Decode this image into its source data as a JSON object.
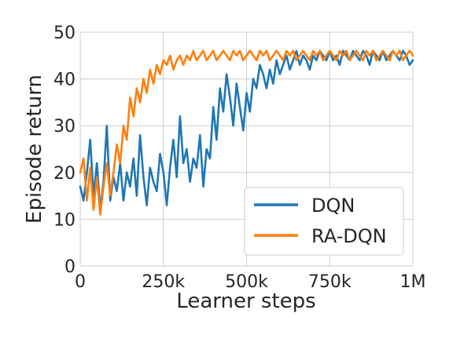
{
  "chart_data": {
    "type": "line",
    "xlabel": "Learner steps",
    "ylabel": "Episode return",
    "xlim": [
      0,
      1000000
    ],
    "ylim": [
      0,
      50
    ],
    "grid": true,
    "legend_position": "lower-right",
    "x_ticks": [
      {
        "value": 0,
        "label": "0"
      },
      {
        "value": 250000,
        "label": "250k"
      },
      {
        "value": 500000,
        "label": "500k"
      },
      {
        "value": 750000,
        "label": "750k"
      },
      {
        "value": 1000000,
        "label": "1M"
      }
    ],
    "y_ticks": [
      {
        "value": 0,
        "label": "0"
      },
      {
        "value": 10,
        "label": "10"
      },
      {
        "value": 20,
        "label": "20"
      },
      {
        "value": 30,
        "label": "30"
      },
      {
        "value": 40,
        "label": "40"
      },
      {
        "value": 50,
        "label": "50"
      }
    ],
    "series": [
      {
        "name": "DQN",
        "color": "#1f77b4",
        "points": [
          [
            0,
            17
          ],
          [
            10000,
            14
          ],
          [
            20000,
            20
          ],
          [
            30000,
            27
          ],
          [
            40000,
            15
          ],
          [
            50000,
            22
          ],
          [
            60000,
            12
          ],
          [
            70000,
            18
          ],
          [
            80000,
            30
          ],
          [
            90000,
            14
          ],
          [
            100000,
            19
          ],
          [
            110000,
            16
          ],
          [
            120000,
            22
          ],
          [
            130000,
            14
          ],
          [
            140000,
            20
          ],
          [
            150000,
            17
          ],
          [
            160000,
            23
          ],
          [
            170000,
            15
          ],
          [
            180000,
            28
          ],
          [
            190000,
            19
          ],
          [
            200000,
            13
          ],
          [
            210000,
            21
          ],
          [
            220000,
            18
          ],
          [
            230000,
            16
          ],
          [
            240000,
            24
          ],
          [
            250000,
            20
          ],
          [
            260000,
            13
          ],
          [
            270000,
            21
          ],
          [
            280000,
            27
          ],
          [
            290000,
            19
          ],
          [
            300000,
            32
          ],
          [
            310000,
            22
          ],
          [
            320000,
            25
          ],
          [
            330000,
            18
          ],
          [
            340000,
            23
          ],
          [
            350000,
            21
          ],
          [
            360000,
            28
          ],
          [
            370000,
            17
          ],
          [
            380000,
            25
          ],
          [
            390000,
            23
          ],
          [
            400000,
            34
          ],
          [
            410000,
            27
          ],
          [
            420000,
            38
          ],
          [
            430000,
            33
          ],
          [
            440000,
            41
          ],
          [
            450000,
            36
          ],
          [
            460000,
            30
          ],
          [
            470000,
            39
          ],
          [
            480000,
            34
          ],
          [
            490000,
            29
          ],
          [
            500000,
            37
          ],
          [
            510000,
            33
          ],
          [
            520000,
            40
          ],
          [
            530000,
            38
          ],
          [
            540000,
            43
          ],
          [
            550000,
            41
          ],
          [
            560000,
            38
          ],
          [
            570000,
            42
          ],
          [
            580000,
            39
          ],
          [
            590000,
            44
          ],
          [
            600000,
            41
          ],
          [
            610000,
            43
          ],
          [
            620000,
            45
          ],
          [
            630000,
            42
          ],
          [
            640000,
            44
          ],
          [
            650000,
            46
          ],
          [
            660000,
            43
          ],
          [
            670000,
            45
          ],
          [
            680000,
            44
          ],
          [
            690000,
            42
          ],
          [
            700000,
            45
          ],
          [
            710000,
            44
          ],
          [
            720000,
            46
          ],
          [
            730000,
            45
          ],
          [
            740000,
            44
          ],
          [
            750000,
            46
          ],
          [
            760000,
            44
          ],
          [
            770000,
            45
          ],
          [
            780000,
            43
          ],
          [
            790000,
            46
          ],
          [
            800000,
            45
          ],
          [
            810000,
            44
          ],
          [
            820000,
            46
          ],
          [
            830000,
            45
          ],
          [
            840000,
            44
          ],
          [
            850000,
            46
          ],
          [
            860000,
            45
          ],
          [
            870000,
            43
          ],
          [
            880000,
            46
          ],
          [
            890000,
            45
          ],
          [
            900000,
            44
          ],
          [
            910000,
            46
          ],
          [
            920000,
            44
          ],
          [
            930000,
            45
          ],
          [
            940000,
            46
          ],
          [
            950000,
            45
          ],
          [
            960000,
            44
          ],
          [
            970000,
            46
          ],
          [
            980000,
            45
          ],
          [
            990000,
            43
          ],
          [
            1000000,
            44
          ]
        ]
      },
      {
        "name": "RA-DQN",
        "color": "#ff7f0e",
        "points": [
          [
            0,
            20
          ],
          [
            10000,
            23
          ],
          [
            20000,
            14
          ],
          [
            30000,
            21
          ],
          [
            40000,
            12
          ],
          [
            50000,
            19
          ],
          [
            60000,
            11
          ],
          [
            70000,
            17
          ],
          [
            80000,
            22
          ],
          [
            90000,
            15
          ],
          [
            100000,
            20
          ],
          [
            110000,
            26
          ],
          [
            120000,
            22
          ],
          [
            130000,
            30
          ],
          [
            140000,
            27
          ],
          [
            150000,
            36
          ],
          [
            160000,
            32
          ],
          [
            170000,
            38
          ],
          [
            180000,
            35
          ],
          [
            190000,
            40
          ],
          [
            200000,
            37
          ],
          [
            210000,
            42
          ],
          [
            220000,
            39
          ],
          [
            230000,
            43
          ],
          [
            240000,
            41
          ],
          [
            250000,
            44
          ],
          [
            260000,
            43
          ],
          [
            270000,
            45
          ],
          [
            280000,
            42
          ],
          [
            290000,
            44
          ],
          [
            300000,
            45
          ],
          [
            310000,
            43
          ],
          [
            320000,
            45
          ],
          [
            330000,
            44
          ],
          [
            340000,
            46
          ],
          [
            350000,
            44
          ],
          [
            360000,
            45
          ],
          [
            370000,
            46
          ],
          [
            380000,
            44
          ],
          [
            390000,
            45
          ],
          [
            400000,
            46
          ],
          [
            410000,
            44
          ],
          [
            420000,
            45
          ],
          [
            430000,
            46
          ],
          [
            440000,
            45
          ],
          [
            450000,
            44
          ],
          [
            460000,
            46
          ],
          [
            470000,
            45
          ],
          [
            480000,
            46
          ],
          [
            490000,
            44
          ],
          [
            500000,
            45
          ],
          [
            510000,
            46
          ],
          [
            520000,
            45
          ],
          [
            530000,
            44
          ],
          [
            540000,
            46
          ],
          [
            550000,
            45
          ],
          [
            560000,
            46
          ],
          [
            570000,
            44
          ],
          [
            580000,
            45
          ],
          [
            590000,
            46
          ],
          [
            600000,
            45
          ],
          [
            610000,
            44
          ],
          [
            620000,
            46
          ],
          [
            630000,
            45
          ],
          [
            640000,
            46
          ],
          [
            650000,
            44
          ],
          [
            660000,
            45
          ],
          [
            670000,
            46
          ],
          [
            680000,
            45
          ],
          [
            690000,
            44
          ],
          [
            700000,
            46
          ],
          [
            710000,
            45
          ],
          [
            720000,
            46
          ],
          [
            730000,
            44
          ],
          [
            740000,
            45
          ],
          [
            750000,
            46
          ],
          [
            760000,
            45
          ],
          [
            770000,
            44
          ],
          [
            780000,
            46
          ],
          [
            790000,
            45
          ],
          [
            800000,
            46
          ],
          [
            810000,
            44
          ],
          [
            820000,
            45
          ],
          [
            830000,
            46
          ],
          [
            840000,
            45
          ],
          [
            850000,
            44
          ],
          [
            860000,
            46
          ],
          [
            870000,
            45
          ],
          [
            880000,
            46
          ],
          [
            890000,
            44
          ],
          [
            900000,
            45
          ],
          [
            910000,
            46
          ],
          [
            920000,
            45
          ],
          [
            930000,
            44
          ],
          [
            940000,
            46
          ],
          [
            950000,
            45
          ],
          [
            960000,
            46
          ],
          [
            970000,
            44
          ],
          [
            980000,
            45
          ],
          [
            990000,
            46
          ],
          [
            1000000,
            45
          ]
        ]
      }
    ]
  }
}
